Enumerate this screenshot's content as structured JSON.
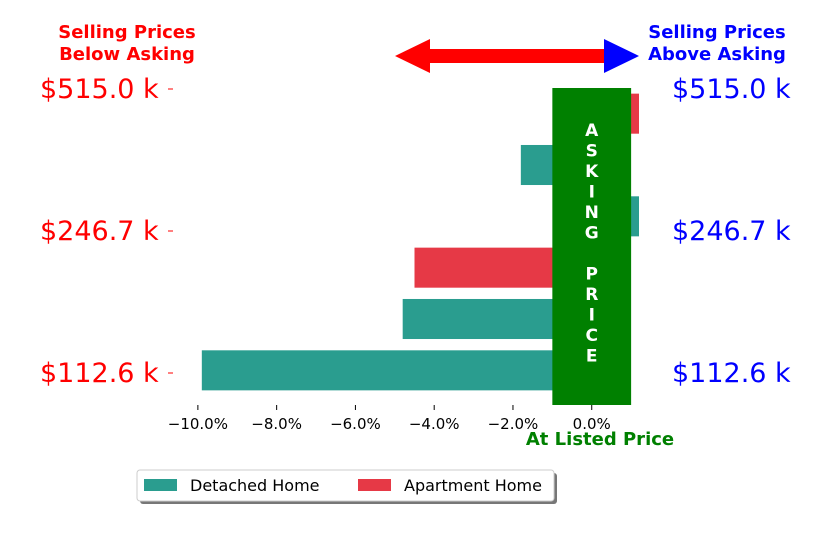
{
  "chart_data": {
    "type": "bar",
    "orientation": "horizontal",
    "x_unit": "percent",
    "xlim": [
      -10.2,
      1.2
    ],
    "x_ticks": [
      -10,
      -8,
      -6,
      -4,
      -2,
      0
    ],
    "x_tick_labels": [
      "−10.0%",
      "−8.0%",
      "−6.0%",
      "−4.0%",
      "−2.0%",
      "0.0%"
    ],
    "rows": [
      {
        "series": "Detached Home",
        "value": -9.9
      },
      {
        "series": "Detached Home",
        "value": -4.8
      },
      {
        "series": "Apartment Home",
        "value": -4.5
      },
      {
        "series": "Detached Home",
        "value": 1.2
      },
      {
        "series": "Detached Home",
        "value": -1.8
      },
      {
        "series": "Apartment Home",
        "value": 1.2
      }
    ],
    "series": [
      {
        "name": "Detached Home",
        "color": "#2a9d8f"
      },
      {
        "name": "Apartment Home",
        "color": "#e63946"
      }
    ],
    "price_labels": [
      "$112.6 k",
      "$246.7 k",
      "$515.0 k"
    ],
    "left_title": [
      "Selling Prices",
      "Below Asking"
    ],
    "right_title": [
      "Selling Prices",
      "Above Asking"
    ],
    "xlabel": "At Listed Price",
    "asking_band_text": [
      "A",
      "S",
      "K",
      "I",
      "N",
      "G",
      "",
      "P",
      "R",
      "I",
      "C",
      "E"
    ],
    "asking_band_range": [
      -1.0,
      1.0
    ],
    "legend_placement": "bottom-left",
    "colors": {
      "below": "#ff0000",
      "above": "#0000ff",
      "asking": "#008000",
      "arrow_left": "#ff0000",
      "arrow_right": "#0000ff"
    }
  }
}
